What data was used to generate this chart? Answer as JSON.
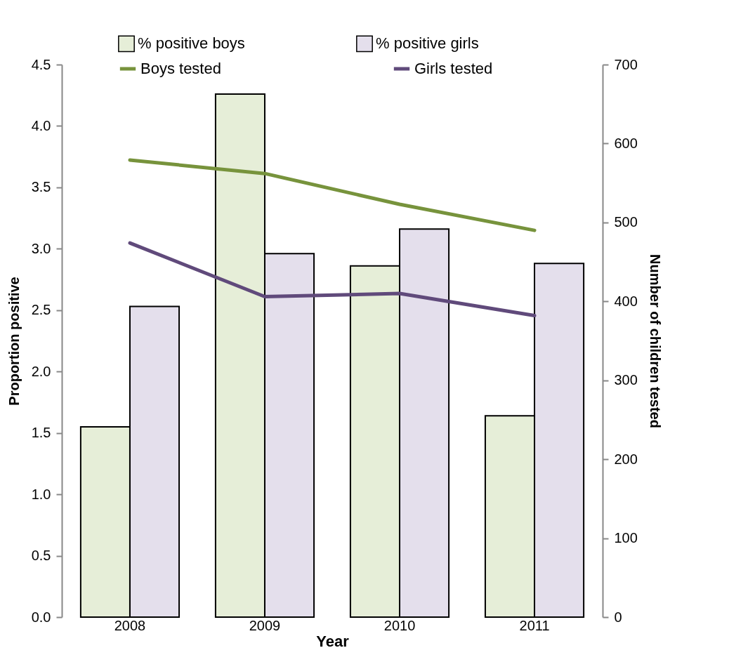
{
  "chart_data": {
    "type": "bar",
    "xlabel": "Year",
    "ylabel": "Proportion positive",
    "y2label": "Number of children tested",
    "categories": [
      "2008",
      "2009",
      "2010",
      "2011"
    ],
    "series": [
      {
        "name": "% positive boys",
        "type": "bar",
        "color": "#e6eed8",
        "values": [
          1.55,
          4.26,
          2.86,
          1.64
        ]
      },
      {
        "name": "% positive girls",
        "type": "bar",
        "color": "#e4dfec",
        "values": [
          2.53,
          2.96,
          3.16,
          2.88
        ]
      },
      {
        "name": "Boys tested",
        "type": "line",
        "axis": "y2",
        "color": "#77933c",
        "values": [
          579,
          562,
          523,
          490
        ]
      },
      {
        "name": "Girls tested",
        "type": "line",
        "axis": "y2",
        "color": "#604a7b",
        "values": [
          474,
          406,
          410,
          382
        ]
      }
    ],
    "ylim": [
      0,
      4.5
    ],
    "yticks": [
      {
        "value": 0,
        "label": "0.0"
      },
      0.5,
      {
        "value": 1,
        "label": "1.0"
      },
      1.5,
      {
        "value": 2,
        "label": "2.0"
      },
      2.5,
      {
        "value": 3,
        "label": "3.0"
      },
      3.5,
      {
        "value": 4,
        "label": "4.0"
      },
      4.5
    ],
    "y2lim": [
      0,
      700
    ],
    "y2ticks": [
      0,
      100,
      200,
      300,
      400,
      500,
      600,
      700
    ],
    "grid": false,
    "legend": "top"
  }
}
